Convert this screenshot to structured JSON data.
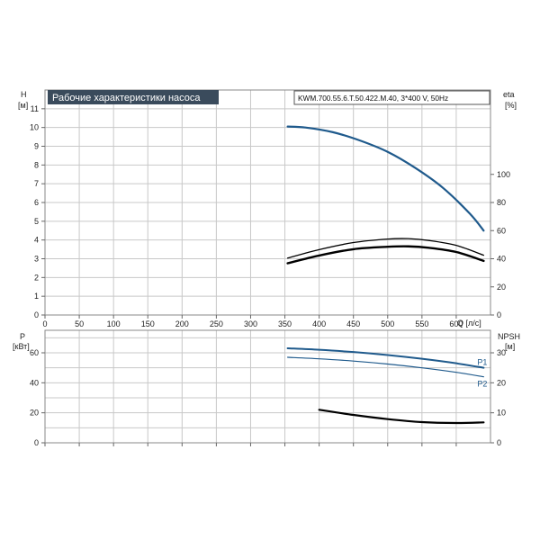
{
  "header": {
    "title": "Рабочие характеристики насоса",
    "model": "KWM.700.55.6.T.50.422.M.40, 3*400 V, 50Hz"
  },
  "colors": {
    "title_bg": "#3a4b5c",
    "title_fg": "#ffffff",
    "head_curve": "#1f5a8c",
    "power_curve": "#1f5a8c",
    "eta_curve": "#000000",
    "npsh_curve": "#000000"
  },
  "chart_data": [
    {
      "type": "line",
      "xlabel": "Q [л/с]",
      "xlim": [
        0,
        650
      ],
      "x_ticks": [
        0,
        50,
        100,
        150,
        200,
        250,
        300,
        350,
        400,
        450,
        500,
        550,
        600
      ],
      "ylabel": "H",
      "ylabel_unit": "[м]",
      "ylim": [
        0,
        12
      ],
      "y_ticks": [
        0,
        1,
        2,
        3,
        4,
        5,
        6,
        7,
        8,
        9,
        10,
        11
      ],
      "y2label": "eta",
      "y2label_unit": "[%]",
      "y2lim": [
        0,
        160
      ],
      "y2_ticks": [
        0,
        20,
        40,
        60,
        80,
        100
      ],
      "grid": true,
      "series": [
        {
          "axis": "left",
          "x": [
            354,
            380,
            420,
            460,
            500,
            540,
            580,
            620,
            640
          ],
          "y": [
            10.05,
            10.0,
            9.75,
            9.3,
            8.7,
            7.85,
            6.8,
            5.4,
            4.5
          ]
        },
        {
          "axis": "right",
          "x": [
            354,
            400,
            450,
            500,
            530,
            560,
            600,
            640
          ],
          "y": [
            40.5,
            46.5,
            51.5,
            54.0,
            54.3,
            53.0,
            49.5,
            42.5
          ]
        },
        {
          "axis": "right",
          "x": [
            354,
            400,
            450,
            500,
            530,
            560,
            600,
            640
          ],
          "y": [
            36.8,
            42.3,
            46.8,
            48.5,
            48.8,
            47.8,
            44.8,
            38.5
          ]
        }
      ]
    },
    {
      "type": "line",
      "xlim": [
        0,
        650
      ],
      "ylabel": "P",
      "ylabel_unit": "[кВт]",
      "ylim": [
        0,
        75
      ],
      "y_ticks": [
        0,
        20,
        40,
        60
      ],
      "y2label": "NPSH",
      "y2label_unit": "[м]",
      "y2lim": [
        0,
        37.5
      ],
      "y2_ticks": [
        0,
        10,
        20,
        30
      ],
      "grid": true,
      "series": [
        {
          "name": "P1",
          "axis": "left",
          "x": [
            354,
            400,
            450,
            500,
            550,
            600,
            640
          ],
          "y": [
            63.0,
            62.0,
            60.5,
            58.5,
            56.0,
            53.0,
            50.0
          ]
        },
        {
          "name": "P2",
          "axis": "left",
          "x": [
            354,
            400,
            450,
            500,
            550,
            600,
            640
          ],
          "y": [
            57.0,
            56.0,
            54.5,
            52.5,
            50.0,
            47.0,
            44.0
          ]
        },
        {
          "axis": "right",
          "x": [
            400,
            450,
            500,
            550,
            600,
            640
          ],
          "y": [
            11.0,
            9.3,
            7.9,
            6.9,
            6.6,
            6.8
          ]
        }
      ]
    }
  ]
}
